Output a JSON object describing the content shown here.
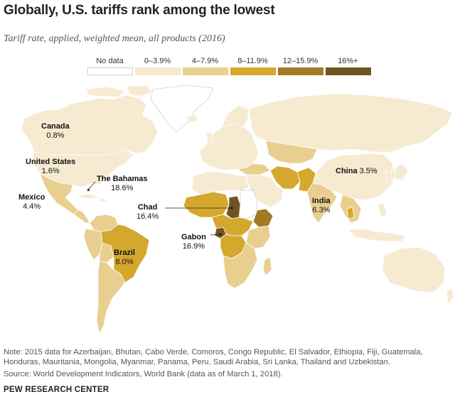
{
  "title": "Globally, U.S. tariffs rank among the lowest",
  "subtitle": "Tariff rate, applied, weighted mean, all products (2016)",
  "legend": [
    {
      "label": "No data",
      "color": "#ffffff"
    },
    {
      "label": "0–3.9%",
      "color": "#f6ead1"
    },
    {
      "label": "4–7.9%",
      "color": "#e8cf8f"
    },
    {
      "label": "8–11.9%",
      "color": "#d4a72d"
    },
    {
      "label": "12–15.9%",
      "color": "#a27a25"
    },
    {
      "label": "16%+",
      "color": "#6f5422"
    }
  ],
  "labels": {
    "canada": {
      "name": "Canada",
      "value": "0.8%"
    },
    "us": {
      "name": "United States",
      "value": "1.6%"
    },
    "bahamas": {
      "name": "The Bahamas",
      "value": "18.6%"
    },
    "mexico": {
      "name": "Mexico",
      "value": "4.4%"
    },
    "chad": {
      "name": "Chad",
      "value": "16.4%"
    },
    "gabon": {
      "name": "Gabon",
      "value": "16.9%"
    },
    "brazil": {
      "name": "Brazil",
      "value": "8.0%"
    },
    "china": {
      "name": "China",
      "value": "3.5%"
    },
    "india": {
      "name": "India",
      "value": "6.3%"
    }
  },
  "note": "Note: 2015 data for Azerbaijan, Bhutan, Cabo Verde, Comoros, Congo Republic, El Salvador, Ethiopia, Fiji, Guatemala, Honduras, Mauritania, Mongolia, Myanmar, Panama, Peru, Saudi Arabia, Sri Lanka, Thailand and Uzbekistan.",
  "source": "Source: World Development Indicators, World Bank (data as of March 1, 2018).",
  "brand": "PEW RESEARCH CENTER"
}
